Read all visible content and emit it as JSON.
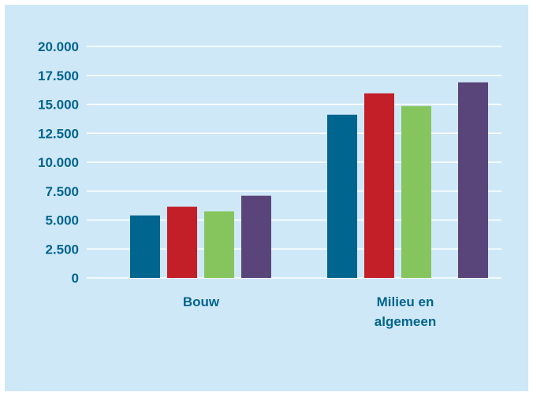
{
  "chart_data": {
    "type": "bar",
    "categories": [
      [
        "Bouw"
      ],
      [
        "Milieu en",
        "algemeen"
      ]
    ],
    "series": [
      {
        "color": "#00668f",
        "values": [
          5400,
          14100
        ]
      },
      {
        "color": "#c21f28",
        "values": [
          6150,
          15950
        ]
      },
      {
        "color": "#86c55e",
        "values": [
          5750,
          14850
        ]
      },
      {
        "color": "#59457a",
        "values": [
          7100,
          16900
        ]
      }
    ],
    "ylim": [
      0,
      20000
    ],
    "yticks": [
      {
        "value": 0,
        "label": "0"
      },
      {
        "value": 2500,
        "label": "2.500"
      },
      {
        "value": 5000,
        "label": "5.000"
      },
      {
        "value": 7500,
        "label": "7.500"
      },
      {
        "value": 10000,
        "label": "10.000"
      },
      {
        "value": 12500,
        "label": "12.500"
      },
      {
        "value": 15000,
        "label": "15.000"
      },
      {
        "value": 17500,
        "label": "17.500"
      },
      {
        "value": 20000,
        "label": "20.000"
      }
    ],
    "grid": true,
    "gridColor": "#ffffff",
    "tickColor": "#00648e",
    "backgroundColor": "#cfe8f8"
  }
}
